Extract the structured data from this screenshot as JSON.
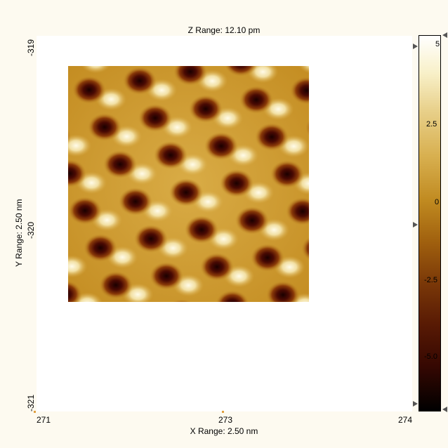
{
  "header": {
    "z_range": "Z Range:  12.10 pm"
  },
  "y_axis": {
    "range_label": "Y Range:  2.50 nm",
    "top_tick": "-319",
    "middle_tick": "-320",
    "bottom_tick": "-321"
  },
  "x_axis": {
    "range_label": "X Range:  2.50 nm",
    "left_tick": "271",
    "middle_tick": "273",
    "right_tick": "274"
  },
  "colorbar": {
    "labels": [
      "5",
      "2.5",
      "0",
      "-2.5",
      "-5.0"
    ],
    "values": [
      5,
      2.5,
      0,
      -2.5,
      -5.0
    ],
    "colors": [
      "#ffffff",
      "#e8d08a",
      "#c08a20",
      "#7a3808",
      "#000000"
    ]
  },
  "image": {
    "lattice": "hexagonal",
    "dark_color": "#2a0303",
    "bright_color": "#fff6d0"
  }
}
